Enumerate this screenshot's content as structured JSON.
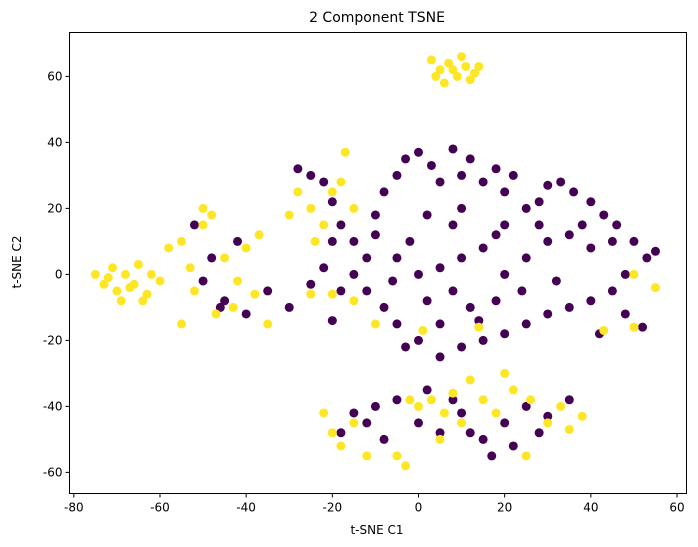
{
  "chart_data": {
    "type": "scatter",
    "title": "2 Component TSNE",
    "x_label": "t-SNE C1",
    "y_label": "t-SNE C2",
    "xlim": [
      -81,
      62.2
    ],
    "ylim": [
      -66.4,
      73.3
    ],
    "xticks": [
      -80,
      -60,
      -40,
      -20,
      0,
      20,
      40,
      60
    ],
    "yticks": [
      -60,
      -40,
      -20,
      0,
      20,
      40,
      60
    ],
    "grid": false,
    "series": [
      {
        "color": "#440154",
        "x": [
          -28,
          -25,
          -22,
          -20,
          -18,
          -15,
          -12,
          -10,
          -8,
          -5,
          -3,
          0,
          3,
          5,
          8,
          10,
          12,
          15,
          18,
          20,
          22,
          25,
          28,
          30,
          33,
          36,
          40,
          43,
          46,
          50,
          53,
          55,
          48,
          45,
          40,
          35,
          30,
          25,
          20,
          15,
          10,
          5,
          0,
          -5,
          -8,
          -12,
          -15,
          -18,
          -22,
          -25,
          -20,
          -10,
          -5,
          0,
          5,
          10,
          15,
          20,
          25,
          30,
          35,
          40,
          45,
          38,
          28,
          18,
          8,
          2,
          -2,
          -6,
          2,
          8,
          12,
          18,
          24,
          32,
          10,
          20,
          5,
          -3,
          14,
          -30,
          -35,
          -40,
          -45,
          -48,
          -42,
          -50,
          -52,
          -46,
          48,
          52,
          42,
          -20,
          -15,
          -10,
          -5,
          0,
          5,
          10,
          15,
          20,
          25,
          28,
          30,
          22,
          17,
          12,
          -8,
          -12,
          2,
          35,
          -18,
          8
        ],
        "y": [
          32,
          30,
          28,
          22,
          15,
          10,
          5,
          18,
          25,
          30,
          35,
          37,
          33,
          28,
          38,
          30,
          35,
          28,
          32,
          25,
          30,
          20,
          22,
          27,
          28,
          25,
          22,
          18,
          15,
          10,
          5,
          7,
          0,
          -5,
          -8,
          -10,
          -12,
          -15,
          -18,
          -20,
          -22,
          -25,
          -20,
          -15,
          -10,
          -5,
          0,
          -5,
          2,
          -3,
          10,
          12,
          5,
          0,
          2,
          5,
          8,
          0,
          5,
          10,
          12,
          8,
          10,
          15,
          15,
          12,
          15,
          18,
          10,
          -2,
          -8,
          -5,
          -10,
          -8,
          -5,
          -2,
          20,
          15,
          -15,
          -22,
          -14,
          -10,
          -5,
          -12,
          -8,
          5,
          10,
          -2,
          15,
          -10,
          -12,
          -16,
          -18,
          -14,
          -42,
          -40,
          -38,
          -45,
          -48,
          -42,
          -50,
          -45,
          -40,
          -48,
          -43,
          -52,
          -55,
          -48,
          -50,
          -45,
          -35,
          -38,
          -48,
          -38
        ]
      },
      {
        "color": "#fde725",
        "x": [
          3,
          5,
          7,
          9,
          11,
          13,
          6,
          10,
          4,
          12,
          8,
          14,
          -75,
          -73,
          -71,
          -70,
          -68,
          -66,
          -65,
          -63,
          -62,
          -64,
          -69,
          -60,
          -72,
          -67,
          -58,
          -55,
          -52,
          -50,
          -48,
          -50,
          -45,
          -42,
          -40,
          -38,
          -35,
          -55,
          -47,
          -43,
          -53,
          -37,
          -28,
          -25,
          -22,
          -20,
          -18,
          -15,
          -24,
          -30,
          -17,
          -20,
          -15,
          -10,
          -25,
          -22,
          -20,
          -18,
          -15,
          -12,
          -5,
          -3,
          0,
          3,
          6,
          8,
          12,
          15,
          18,
          22,
          26,
          30,
          33,
          35,
          38,
          25,
          20,
          5,
          -2,
          10,
          55,
          50,
          43,
          1,
          14,
          50
        ],
        "y": [
          65,
          62,
          64,
          60,
          63,
          61,
          58,
          66,
          60,
          59,
          62,
          63,
          0,
          -3,
          2,
          -5,
          0,
          -3,
          3,
          -6,
          0,
          -8,
          -8,
          -2,
          -1,
          -4,
          8,
          10,
          -5,
          20,
          18,
          15,
          5,
          -2,
          8,
          -6,
          -15,
          -15,
          -12,
          -10,
          2,
          12,
          25,
          20,
          15,
          25,
          28,
          20,
          10,
          18,
          37,
          -6,
          -8,
          -15,
          -6,
          -42,
          -48,
          -52,
          -45,
          -55,
          -55,
          -58,
          -40,
          -38,
          -42,
          -36,
          -32,
          -38,
          -42,
          -35,
          -38,
          -45,
          -40,
          -47,
          -43,
          -55,
          -30,
          -50,
          -38,
          -45,
          -4,
          -16,
          -17,
          -17,
          -16,
          0
        ]
      }
    ]
  }
}
